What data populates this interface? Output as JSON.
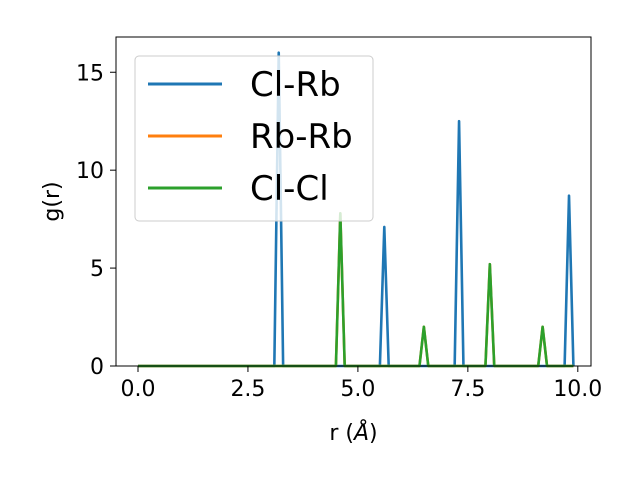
{
  "chart_data": {
    "type": "line",
    "title": "",
    "xlabel": "r (Å)",
    "ylabel": "g(r)",
    "xlim": [
      -0.5,
      10.3
    ],
    "ylim": [
      0,
      16.8
    ],
    "xticks": [
      0.0,
      2.5,
      5.0,
      7.5,
      10.0
    ],
    "xtick_labels": [
      "0.0",
      "2.5",
      "5.0",
      "7.5",
      "10.0"
    ],
    "yticks": [
      0,
      5,
      10,
      15
    ],
    "ytick_labels": [
      "0",
      "5",
      "10",
      "15"
    ],
    "grid": false,
    "legend": {
      "placement": "top-left",
      "entries": [
        "Cl-Rb",
        "Rb-Rb",
        "Cl-Cl"
      ]
    },
    "series": [
      {
        "name": "Cl-Rb",
        "color": "#1f77b4",
        "x": [
          0.0,
          3.1,
          3.2,
          3.3,
          5.5,
          5.6,
          5.7,
          7.2,
          7.3,
          7.4,
          9.7,
          9.8,
          9.9
        ],
        "y": [
          0,
          0,
          16.0,
          0,
          0,
          7.1,
          0,
          0,
          12.5,
          0,
          0,
          8.7,
          0
        ]
      },
      {
        "name": "Rb-Rb",
        "color": "#ff7f0e",
        "x": [
          0.0,
          4.5,
          4.6,
          4.7,
          6.4,
          6.5,
          6.6,
          7.9,
          8.0,
          8.1,
          9.1,
          9.2,
          9.3,
          9.9
        ],
        "y": [
          0,
          0,
          7.8,
          0,
          0,
          2.0,
          0,
          0,
          5.2,
          0,
          0,
          2.0,
          0,
          0
        ]
      },
      {
        "name": "Cl-Cl",
        "color": "#2ca02c",
        "x": [
          0.0,
          4.5,
          4.6,
          4.7,
          6.4,
          6.5,
          6.6,
          7.9,
          8.0,
          8.1,
          9.1,
          9.2,
          9.3,
          9.9
        ],
        "y": [
          0,
          0,
          7.8,
          0,
          0,
          2.0,
          0,
          0,
          5.2,
          0,
          0,
          2.0,
          0,
          0
        ]
      }
    ]
  }
}
